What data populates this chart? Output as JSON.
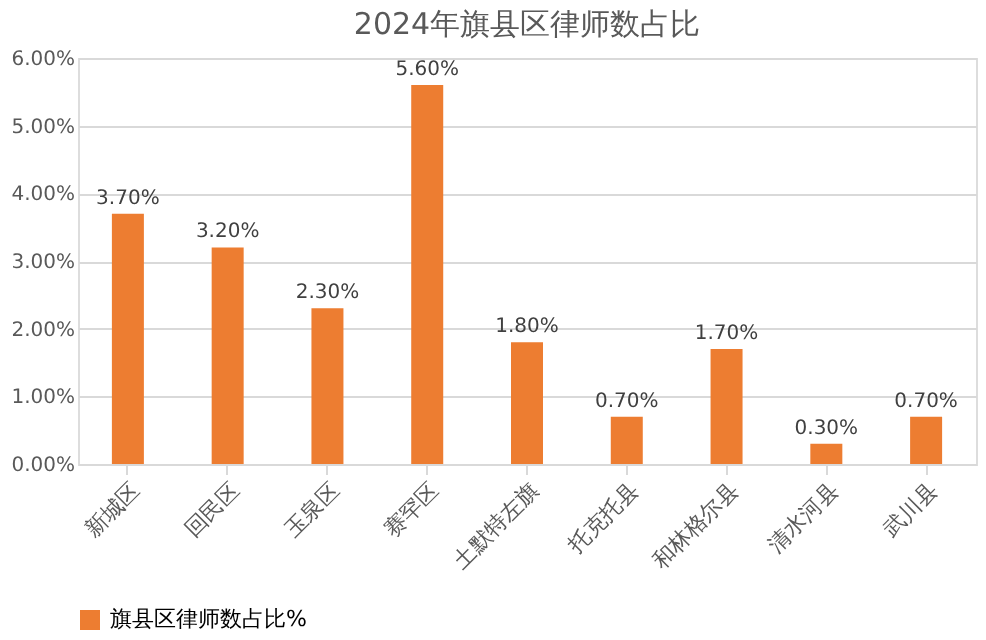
{
  "chart_data": {
    "type": "bar",
    "title": "2024年旗县区律师数占比",
    "categories": [
      "新城区",
      "回民区",
      "玉泉区",
      "赛罕区",
      "土默特左旗",
      "托克托县",
      "和林格尔县",
      "清水河县",
      "武川县"
    ],
    "series": [
      {
        "name": "旗县区律师数占比%",
        "color": "#ed7d31",
        "values": [
          3.7,
          3.2,
          2.3,
          5.6,
          1.8,
          0.7,
          1.7,
          0.3,
          0.7
        ],
        "value_labels": [
          "3.70%",
          "3.20%",
          "2.30%",
          "5.60%",
          "1.80%",
          "0.70%",
          "1.70%",
          "0.30%",
          "0.70%"
        ]
      }
    ],
    "ylim": [
      0,
      6
    ],
    "yticks": [
      {
        "value": 0,
        "label": "0.00%"
      },
      {
        "value": 1,
        "label": "1.00%"
      },
      {
        "value": 2,
        "label": "2.00%"
      },
      {
        "value": 3,
        "label": "3.00%"
      },
      {
        "value": 4,
        "label": "4.00%"
      },
      {
        "value": 5,
        "label": "5.00%"
      },
      {
        "value": 6,
        "label": "6.00%"
      }
    ],
    "grid": "y",
    "legend": "bottom"
  }
}
